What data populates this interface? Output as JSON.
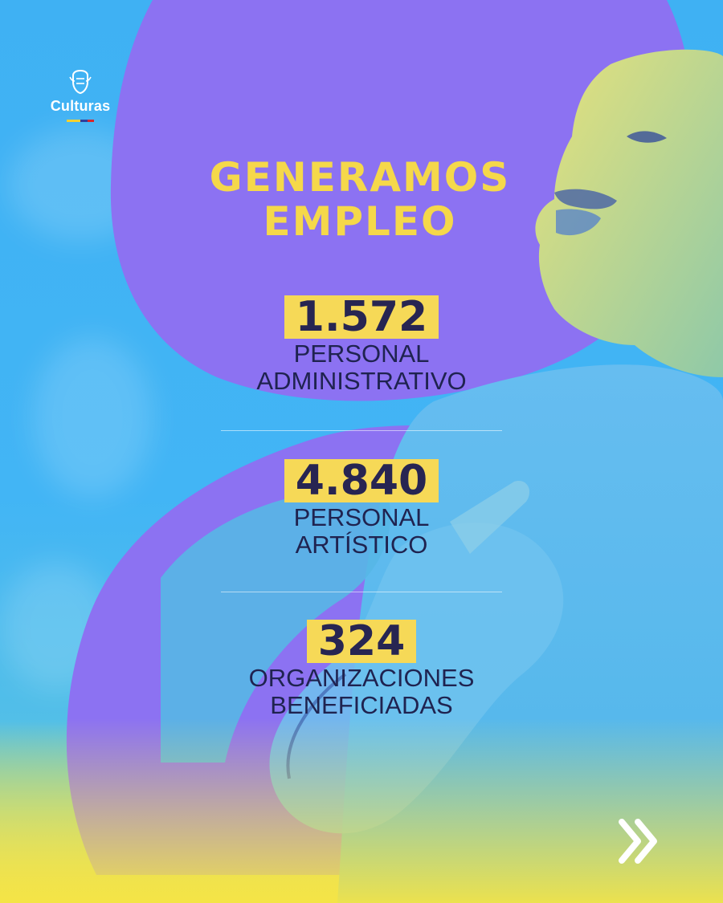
{
  "brand": {
    "name": "Culturas",
    "flag_colors": [
      "#f5d130",
      "#2d3f9e",
      "#d8262b"
    ]
  },
  "title": {
    "line1": "GENERAMOS",
    "line2": "EMPLEO"
  },
  "stats": [
    {
      "value": "1.572",
      "line1": "PERSONAL",
      "line2": "ADMINISTRATIVO"
    },
    {
      "value": "4.840",
      "line1": "PERSONAL",
      "line2": "ARTÍSTICO"
    },
    {
      "value": "324",
      "line1": "ORGANIZACIONES",
      "line2": "BENEFICIADAS"
    }
  ],
  "colors": {
    "sky_blue": "#42b5f5",
    "purple_blob": "#8c72f2",
    "title_yellow": "#f5d84a",
    "number_highlight": "#f6d957",
    "number_text": "#272552",
    "label_text": "#1f2350"
  },
  "icons": {
    "next": "double-chevron-right-icon",
    "logo": "coat-of-arms-icon"
  }
}
